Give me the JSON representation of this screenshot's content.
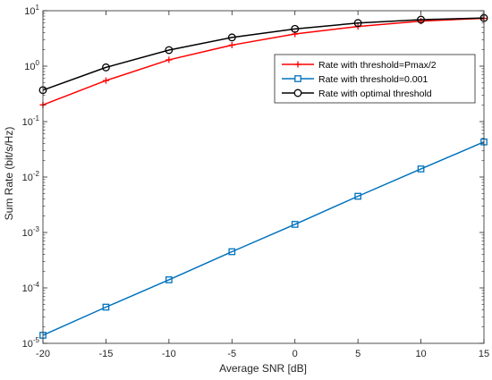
{
  "chart_data": {
    "type": "line",
    "xlabel": "Average SNR [dB]",
    "ylabel": "Sum Rate (bit/s/Hz)",
    "xlim": [
      -20,
      15
    ],
    "ylim": [
      1e-05,
      10
    ],
    "yscale": "log",
    "grid": false,
    "legend_position": "top-right",
    "x_ticks": [
      -20,
      -15,
      -10,
      -5,
      0,
      5,
      10,
      15
    ],
    "y_ticks": [
      {
        "value": 1e-05,
        "base": "10",
        "exp": "-5"
      },
      {
        "value": 0.0001,
        "base": "10",
        "exp": "-4"
      },
      {
        "value": 0.001,
        "base": "10",
        "exp": "-3"
      },
      {
        "value": 0.01,
        "base": "10",
        "exp": "-2"
      },
      {
        "value": 0.1,
        "base": "10",
        "exp": "-1"
      },
      {
        "value": 1,
        "base": "10",
        "exp": "0"
      },
      {
        "value": 10,
        "base": "10",
        "exp": "1"
      }
    ],
    "x": [
      -20,
      -15,
      -10,
      -5,
      0,
      5,
      10,
      15
    ],
    "series": [
      {
        "name": "Rate with threshold=Pmax/2",
        "color": "#ff0000",
        "marker": "plus",
        "values": [
          0.2,
          0.55,
          1.3,
          2.4,
          3.8,
          5.2,
          6.5,
          7.3
        ]
      },
      {
        "name": "Rate with threshold=0.001",
        "color": "#0072bd",
        "marker": "square",
        "values": [
          1.4e-05,
          4.5e-05,
          0.00014,
          0.00045,
          0.0014,
          0.0045,
          0.014,
          0.043
        ]
      },
      {
        "name": "Rate with optimal threshold",
        "color": "#000000",
        "marker": "circle",
        "values": [
          0.37,
          0.95,
          1.95,
          3.3,
          4.7,
          6.0,
          6.9,
          7.4
        ]
      }
    ]
  }
}
